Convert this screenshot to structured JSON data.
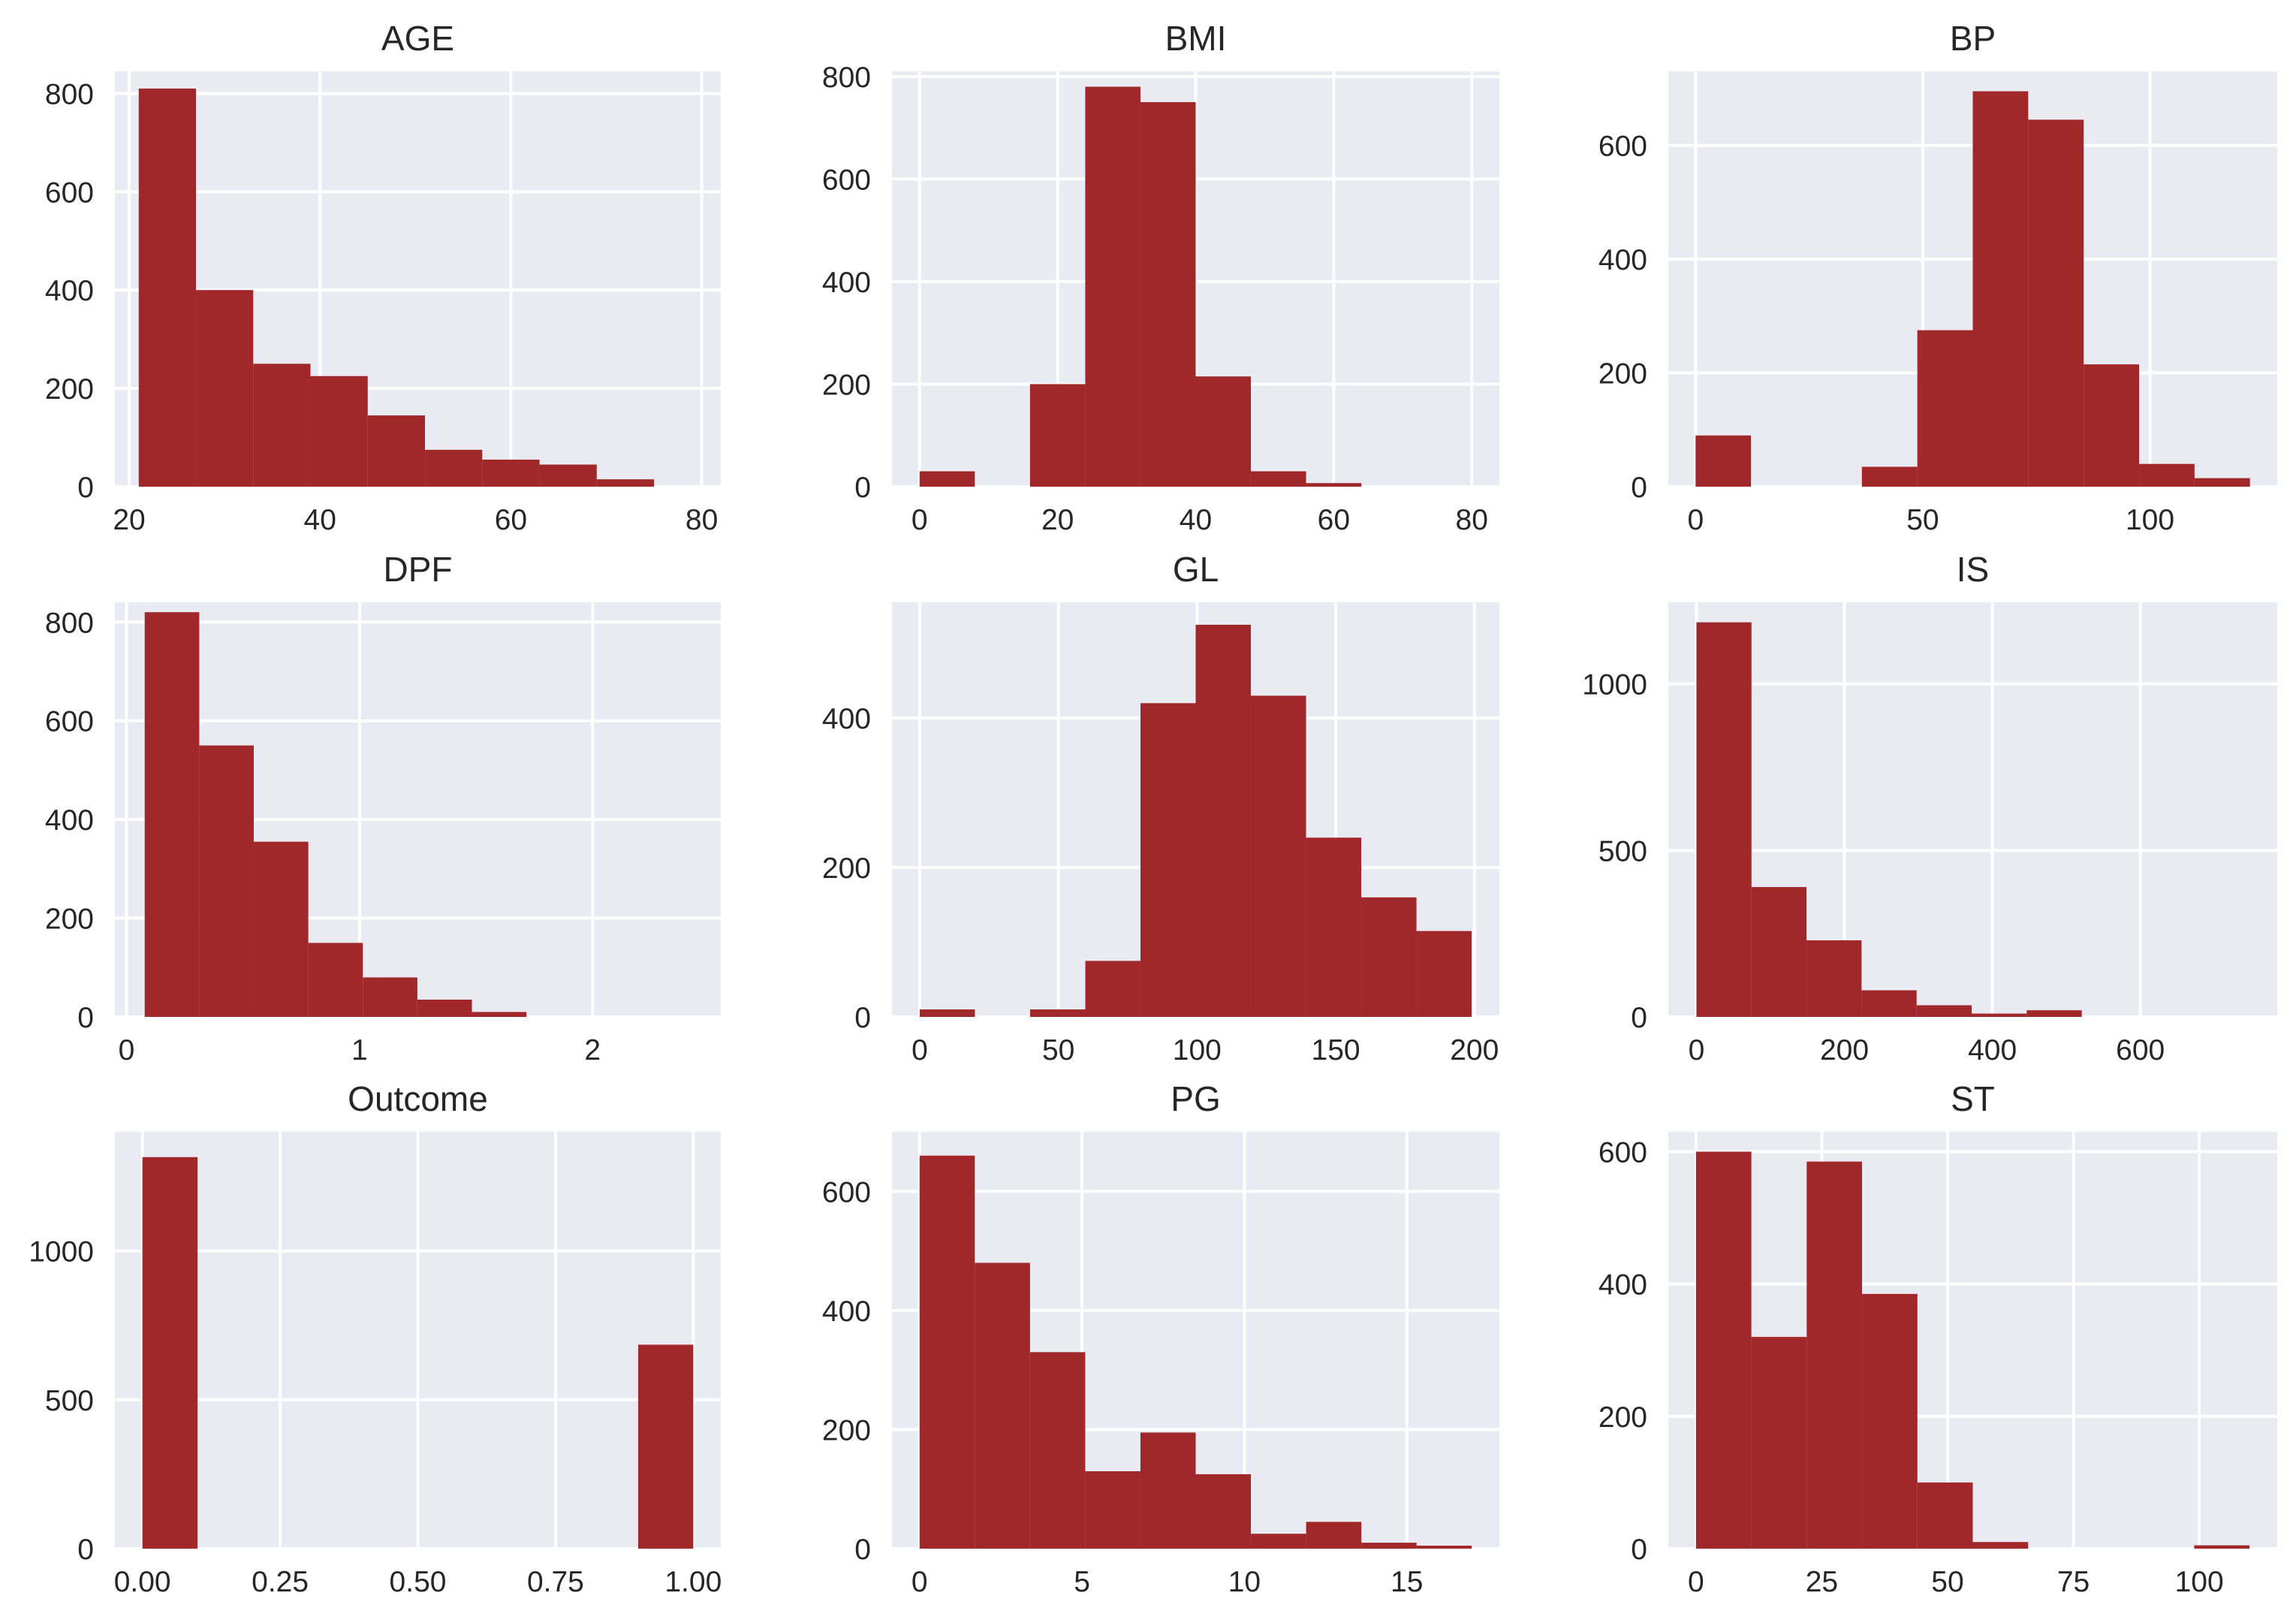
{
  "figure": {
    "bar_color": "#a0282a",
    "background": "#eaeaf2",
    "grid_color": "#ffffff"
  },
  "chart_data": [
    {
      "type": "bar",
      "title": "AGE",
      "xlabel": "",
      "ylabel": "",
      "xlim": [
        18.5,
        82
      ],
      "ylim": [
        0,
        845
      ],
      "xticks": [
        20,
        40,
        60,
        80
      ],
      "yticks": [
        0,
        200,
        400,
        600,
        800
      ],
      "bin_edges": [
        21,
        27,
        33,
        39,
        45,
        51,
        57,
        63,
        69,
        75
      ],
      "values": [
        810,
        400,
        250,
        225,
        145,
        75,
        55,
        45,
        15
      ]
    },
    {
      "type": "bar",
      "title": "BMI",
      "xlabel": "",
      "ylabel": "",
      "xlim": [
        -4,
        84
      ],
      "ylim": [
        0,
        810
      ],
      "xticks": [
        0,
        20,
        40,
        60,
        80
      ],
      "yticks": [
        0,
        200,
        400,
        600,
        800
      ],
      "bin_edges": [
        0,
        8,
        16,
        24,
        32,
        40,
        48,
        56,
        64
      ],
      "values": [
        30,
        0,
        200,
        780,
        750,
        215,
        30,
        7
      ]
    },
    {
      "type": "bar",
      "title": "BP",
      "xlabel": "",
      "ylabel": "",
      "xlim": [
        -6,
        128
      ],
      "ylim": [
        0,
        730
      ],
      "xticks": [
        0,
        50,
        100
      ],
      "yticks": [
        0,
        200,
        400,
        600
      ],
      "bin_edges": [
        0,
        12.2,
        24.4,
        36.6,
        48.8,
        61,
        73.2,
        85.4,
        97.6,
        109.8,
        122
      ],
      "values": [
        90,
        0,
        0,
        35,
        275,
        695,
        645,
        215,
        40,
        15
      ]
    },
    {
      "type": "bar",
      "title": "DPF",
      "xlabel": "",
      "ylabel": "",
      "xlim": [
        -0.05,
        2.55
      ],
      "ylim": [
        0,
        840
      ],
      "xticks": [
        0,
        1,
        2
      ],
      "yticks": [
        0,
        200,
        400,
        600,
        800
      ],
      "xtick_labels": [
        "0",
        "1",
        "2"
      ],
      "bin_edges": [
        0.078,
        0.312,
        0.546,
        0.78,
        1.014,
        1.248,
        1.482,
        1.716,
        1.95,
        2.184,
        2.42
      ],
      "values": [
        820,
        550,
        355,
        150,
        80,
        35,
        10,
        0,
        0,
        0
      ]
    },
    {
      "type": "bar",
      "title": "GL",
      "xlabel": "",
      "ylabel": "",
      "xlim": [
        -10,
        209
      ],
      "ylim": [
        0,
        555
      ],
      "xticks": [
        0,
        50,
        100,
        150,
        200
      ],
      "yticks": [
        0,
        200,
        400
      ],
      "bin_edges": [
        0,
        19.9,
        39.8,
        59.7,
        79.6,
        99.5,
        119.4,
        139.3,
        159.2,
        179.1,
        199
      ],
      "values": [
        10,
        0,
        10,
        75,
        420,
        525,
        430,
        240,
        160,
        115
      ]
    },
    {
      "type": "bar",
      "title": "IS",
      "xlabel": "",
      "ylabel": "",
      "xlim": [
        -38,
        785
      ],
      "ylim": [
        0,
        1245
      ],
      "xticks": [
        0,
        200,
        400,
        600
      ],
      "yticks": [
        0,
        500,
        1000
      ],
      "bin_edges": [
        0,
        74.4,
        148.8,
        223.2,
        297.6,
        372,
        446.4,
        520.8
      ],
      "values": [
        1185,
        390,
        230,
        80,
        35,
        10,
        20
      ]
    },
    {
      "type": "bar",
      "title": "Outcome",
      "xlabel": "",
      "ylabel": "",
      "xlim": [
        -0.05,
        1.05
      ],
      "ylim": [
        0,
        1400
      ],
      "xticks": [
        0,
        0.25,
        0.5,
        0.75,
        1.0
      ],
      "yticks": [
        0,
        500,
        1000
      ],
      "xtick_labels": [
        "0.00",
        "0.25",
        "0.50",
        "0.75",
        "1.00"
      ],
      "bin_edges": [
        0,
        0.1,
        0.2,
        0.3,
        0.4,
        0.5,
        0.6,
        0.7,
        0.8,
        0.9,
        1.0
      ],
      "values": [
        1315,
        0,
        0,
        0,
        0,
        0,
        0,
        0,
        0,
        685
      ]
    },
    {
      "type": "bar",
      "title": "PG",
      "xlabel": "",
      "ylabel": "",
      "xlim": [
        -0.85,
        17.85
      ],
      "ylim": [
        0,
        700
      ],
      "xticks": [
        0,
        5,
        10,
        15
      ],
      "yticks": [
        0,
        200,
        400,
        600
      ],
      "bin_edges": [
        0,
        1.7,
        3.4,
        5.1,
        6.8,
        8.5,
        10.2,
        11.9,
        13.6,
        15.3,
        17
      ],
      "values": [
        660,
        480,
        330,
        130,
        195,
        125,
        25,
        45,
        10,
        5
      ]
    },
    {
      "type": "bar",
      "title": "ST",
      "xlabel": "",
      "ylabel": "",
      "xlim": [
        -5.5,
        115.5
      ],
      "ylim": [
        0,
        630
      ],
      "xticks": [
        0,
        25,
        50,
        75,
        100
      ],
      "yticks": [
        0,
        200,
        400,
        600
      ],
      "bin_edges": [
        0,
        11,
        22,
        33,
        44,
        55,
        66,
        77,
        88,
        99,
        110
      ],
      "values": [
        600,
        320,
        585,
        385,
        100,
        10,
        0,
        0,
        0,
        5
      ]
    }
  ]
}
